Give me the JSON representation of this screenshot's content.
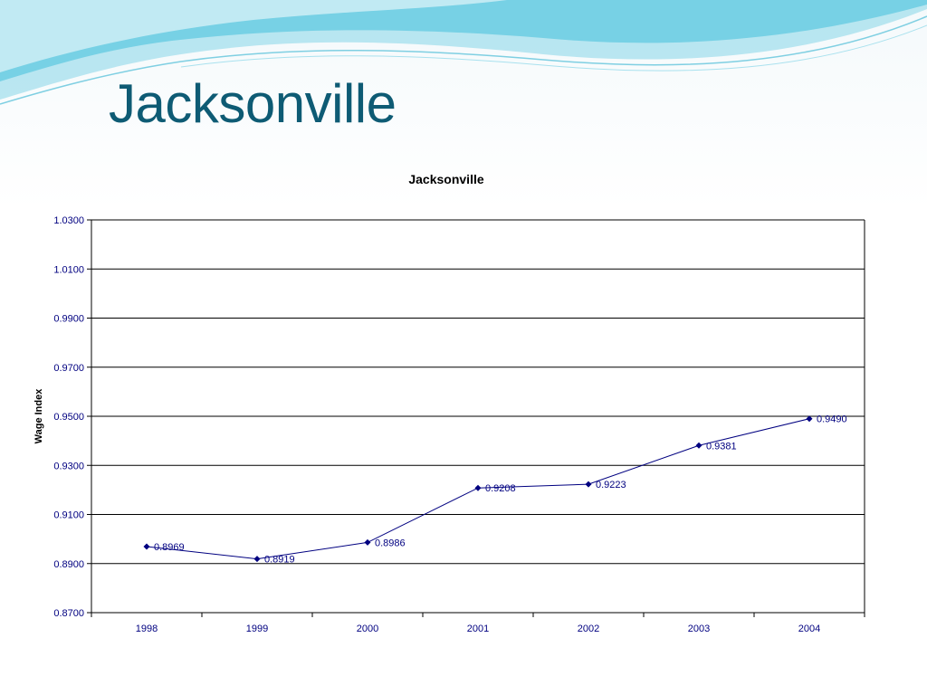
{
  "slide": {
    "title": "Jacksonville"
  },
  "colors": {
    "title": "#0e5b74",
    "series": "#000080",
    "wave_primary": "#5bc8e0",
    "wave_light": "#bfe9f2"
  },
  "chart_data": {
    "type": "line",
    "title": "Jacksonville",
    "xlabel": "",
    "ylabel": "Wage Index",
    "categories": [
      "1998",
      "1999",
      "2000",
      "2001",
      "2002",
      "2003",
      "2004"
    ],
    "series": [
      {
        "values": [
          0.8969,
          0.8919,
          0.8986,
          0.9208,
          0.9223,
          0.9381,
          0.949
        ]
      }
    ],
    "data_labels": [
      "0.8969",
      "0.8919",
      "0.8986",
      "0.9208",
      "0.9223",
      "0.9381",
      "0.9490"
    ],
    "ylim": [
      0.87,
      1.03
    ],
    "yticks": [
      0.87,
      0.89,
      0.91,
      0.93,
      0.95,
      0.97,
      0.99,
      1.01,
      1.03
    ],
    "ytick_labels": [
      "0.8700",
      "0.8900",
      "0.9100",
      "0.9300",
      "0.9500",
      "0.9700",
      "0.9900",
      "1.0100",
      "1.0300"
    ],
    "grid": "horizontal",
    "legend": "none"
  }
}
